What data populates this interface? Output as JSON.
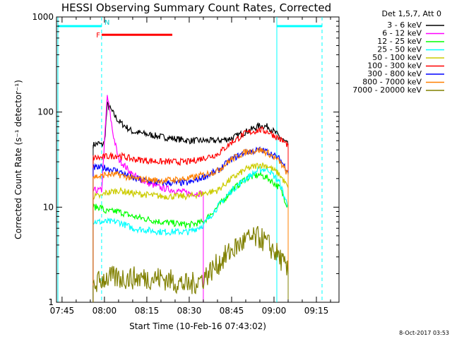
{
  "chart_data": {
    "type": "line",
    "title": "HESSI Observing Summary Count Rates, Corrected",
    "xlabel": "Start Time (10-Feb-16 07:43:02)",
    "ylabel": "Corrected Count Rate (s⁻¹ detector⁻¹)",
    "yscale": "log",
    "ylim": [
      1,
      1000
    ],
    "xlim": [
      "07:43:02",
      "09:23"
    ],
    "x_ticks": [
      "07:45",
      "08:00",
      "08:15",
      "08:30",
      "08:45",
      "09:00",
      "09:15"
    ],
    "y_ticks": [
      "1",
      "10",
      "100",
      "1000"
    ],
    "legend_title": "Det 1,5,7, Att 0",
    "legend_placement": "outside-right",
    "timestamp": "8-Oct-2017 03:53",
    "annotations": {
      "flare_flag": "F",
      "night_flag": "N"
    },
    "series": [
      {
        "name": "3 - 6 keV",
        "color": "#000000",
        "x": [
          "07:56",
          "07:58",
          "07:59",
          "08:00",
          "08:01",
          "08:05",
          "08:10",
          "08:20",
          "08:30",
          "08:40",
          "08:45",
          "08:50",
          "08:55",
          "08:58",
          "09:02",
          "09:05"
        ],
        "values": [
          45,
          47,
          45,
          48,
          120,
          80,
          62,
          55,
          50,
          50,
          53,
          62,
          72,
          70,
          55,
          45
        ]
      },
      {
        "name": "6 - 12 keV",
        "color": "#ff00ff",
        "x": [
          "07:56",
          "07:59",
          "08:01",
          "08:03",
          "08:05",
          "08:10",
          "08:15",
          "08:20",
          "08:25",
          "08:30",
          "08:35"
        ],
        "values": [
          15,
          15,
          150,
          60,
          32,
          22,
          18,
          16,
          15,
          14,
          14
        ]
      },
      {
        "name": "12 - 25 keV",
        "color": "#00ff00",
        "x": [
          "07:56",
          "07:59",
          "08:00",
          "08:05",
          "08:10",
          "08:20",
          "08:30",
          "08:35",
          "08:40",
          "08:45",
          "08:50",
          "08:55",
          "08:58",
          "09:02",
          "09:05"
        ],
        "values": [
          10,
          10,
          9,
          9,
          8,
          7,
          6.5,
          7,
          10,
          15,
          20,
          22,
          20,
          16,
          10
        ]
      },
      {
        "name": "25 - 50 keV",
        "color": "#00ffff",
        "x": [
          "07:56",
          "07:59",
          "08:00",
          "08:05",
          "08:10",
          "08:20",
          "08:30",
          "08:35",
          "08:40",
          "08:45",
          "08:50",
          "08:55",
          "08:58",
          "09:02",
          "09:05"
        ],
        "values": [
          7,
          7,
          7,
          7,
          6,
          5.5,
          5.5,
          6.5,
          10,
          15,
          20,
          25,
          25,
          18,
          10
        ]
      },
      {
        "name": "50 - 100 keV",
        "color": "#cccc00",
        "x": [
          "07:56",
          "07:59",
          "08:00",
          "08:05",
          "08:10",
          "08:20",
          "08:30",
          "08:40",
          "08:45",
          "08:50",
          "08:55",
          "08:58",
          "09:02",
          "09:05"
        ],
        "values": [
          13,
          13,
          14,
          15,
          14,
          13,
          13,
          15,
          20,
          25,
          28,
          27,
          22,
          16
        ]
      },
      {
        "name": "100 - 300 keV",
        "color": "#ff0000",
        "x": [
          "07:56",
          "07:59",
          "08:00",
          "08:05",
          "08:10",
          "08:20",
          "08:30",
          "08:40",
          "08:45",
          "08:50",
          "08:55",
          "08:58",
          "09:02",
          "09:05"
        ],
        "values": [
          33,
          33,
          34,
          35,
          32,
          30,
          30,
          36,
          48,
          60,
          65,
          62,
          52,
          45
        ]
      },
      {
        "name": "300 - 800 keV",
        "color": "#0000ff",
        "x": [
          "07:56",
          "07:59",
          "08:00",
          "08:05",
          "08:10",
          "08:20",
          "08:30",
          "08:40",
          "08:45",
          "08:50",
          "08:55",
          "08:58",
          "09:02",
          "09:05"
        ],
        "values": [
          26,
          26,
          26,
          24,
          20,
          18,
          18,
          24,
          32,
          38,
          40,
          38,
          32,
          24
        ]
      },
      {
        "name": "800 - 7000 keV",
        "color": "#ff8000",
        "x": [
          "07:56",
          "07:59",
          "08:00",
          "08:05",
          "08:10",
          "08:20",
          "08:30",
          "08:40",
          "08:45",
          "08:50",
          "08:55",
          "08:58",
          "09:02",
          "09:05"
        ],
        "values": [
          21,
          21,
          22,
          22,
          20,
          19,
          20,
          24,
          32,
          38,
          40,
          37,
          30,
          22
        ]
      },
      {
        "name": "7000 - 20000 keV",
        "color": "#808000",
        "x": [
          "07:56",
          "08:00",
          "08:10",
          "08:20",
          "08:30",
          "08:35",
          "08:40",
          "08:45",
          "08:50",
          "08:55",
          "08:58",
          "09:02",
          "09:05"
        ],
        "values": [
          1.5,
          1.8,
          1.8,
          1.8,
          1.5,
          1.8,
          2.5,
          3.5,
          4.5,
          4.8,
          4.0,
          3.0,
          2.0
        ]
      }
    ]
  }
}
